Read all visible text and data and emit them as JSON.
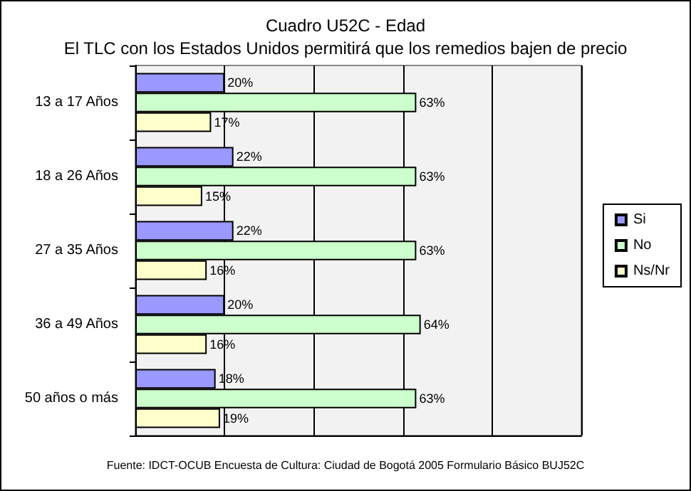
{
  "chart_data": {
    "type": "bar",
    "orientation": "horizontal",
    "title": "Cuadro U52C - Edad",
    "subtitle": "El TLC con los Estados Unidos permitirá que los remedios bajen de precio",
    "categories": [
      "13 a 17 Años",
      "18 a 26 Años",
      "27 a 35 Años",
      "36 a 49 Años",
      "50 años o más"
    ],
    "series": [
      {
        "name": "Si",
        "color": "#9999ff",
        "values": [
          20,
          22,
          22,
          20,
          18
        ],
        "value_labels": [
          "20%",
          "22%",
          "22%",
          "20%",
          "18%"
        ]
      },
      {
        "name": "No",
        "color": "#ccffcc",
        "values": [
          63,
          63,
          63,
          64,
          63
        ],
        "value_labels": [
          "63%",
          "63%",
          "63%",
          "64%",
          "63%"
        ]
      },
      {
        "name": "Ns/Nr",
        "color": "#ffffcc",
        "values": [
          17,
          15,
          16,
          16,
          19
        ],
        "value_labels": [
          "17%",
          "15%",
          "16%",
          "16%",
          "19%"
        ]
      }
    ],
    "xlim": [
      0,
      100
    ],
    "xticks": [
      {
        "value": 0,
        "label": null
      },
      {
        "value": 20,
        "label": null
      },
      {
        "value": 40,
        "label": null
      },
      {
        "value": 60,
        "label": null
      },
      {
        "value": 80,
        "label": null
      },
      {
        "value": 100,
        "label": null
      }
    ],
    "tick_labels": "y",
    "grid": "x",
    "legend": "right",
    "annotations": [
      "Fuente: IDCT-OCUB Encuesta de Cultura: Ciudad de Bogotá 2005 Formulario Básico BUJ52C"
    ]
  }
}
